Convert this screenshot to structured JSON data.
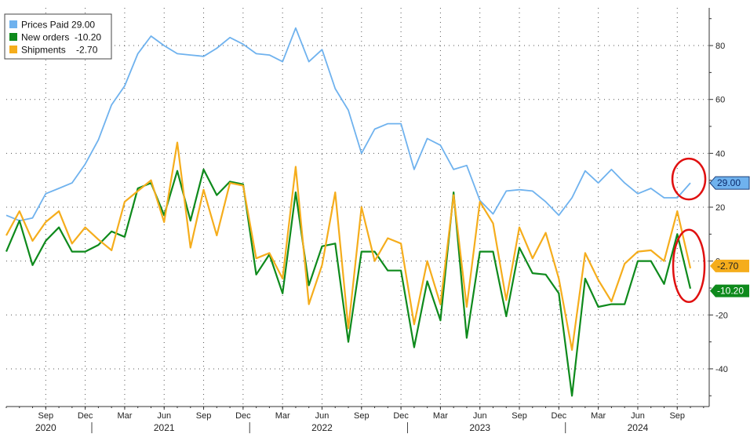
{
  "chart_data": {
    "type": "line",
    "title": "",
    "xlabel": "",
    "ylabel": "",
    "ylim": [
      -54,
      94
    ],
    "y_ticks": [
      -40,
      -20,
      0,
      20,
      40,
      60,
      80
    ],
    "y_tick_labels": [
      "-40",
      "-20",
      "0",
      "20",
      "40",
      "60",
      "80"
    ],
    "grid": true,
    "legend_position": "top-left",
    "x_start": "2020-06",
    "x_tick_labels": [
      {
        "month": "2020-09",
        "label": "Sep"
      },
      {
        "month": "2020-12",
        "label": "Dec"
      },
      {
        "month": "2021-03",
        "label": "Mar"
      },
      {
        "month": "2021-06",
        "label": "Jun"
      },
      {
        "month": "2021-09",
        "label": "Sep"
      },
      {
        "month": "2021-12",
        "label": "Dec"
      },
      {
        "month": "2022-03",
        "label": "Mar"
      },
      {
        "month": "2022-06",
        "label": "Jun"
      },
      {
        "month": "2022-09",
        "label": "Sep"
      },
      {
        "month": "2022-12",
        "label": "Dec"
      },
      {
        "month": "2023-03",
        "label": "Mar"
      },
      {
        "month": "2023-06",
        "label": "Jun"
      },
      {
        "month": "2023-09",
        "label": "Sep"
      },
      {
        "month": "2023-12",
        "label": "Dec"
      },
      {
        "month": "2024-03",
        "label": "Mar"
      },
      {
        "month": "2024-06",
        "label": "Jun"
      },
      {
        "month": "2024-09",
        "label": "Sep"
      }
    ],
    "year_labels": [
      {
        "month": "2020-09",
        "label": "2020"
      },
      {
        "month": "2021-06",
        "label": "2021"
      },
      {
        "month": "2022-06",
        "label": "2022"
      },
      {
        "month": "2023-06",
        "label": "2023"
      },
      {
        "month": "2024-06",
        "label": "2024"
      }
    ],
    "series": [
      {
        "name": "Prices Paid",
        "legend_label": "Prices Paid 29.00",
        "last_value_label": "29.00",
        "color": "#6fb2ee",
        "values": [
          17,
          15,
          16,
          25,
          27,
          29,
          36,
          45,
          58,
          65,
          77,
          83.5,
          80,
          77,
          76.5,
          76,
          79,
          83,
          80.5,
          77,
          76.5,
          74,
          86.5,
          74,
          78.5,
          64,
          56,
          40,
          49,
          51,
          51,
          34,
          45.5,
          43,
          34,
          35.5,
          22.5,
          17.5,
          26,
          26.5,
          26,
          22,
          17,
          23.5,
          33.5,
          29,
          34,
          29,
          25,
          27,
          23.5,
          23.5,
          29
        ]
      },
      {
        "name": "New orders",
        "legend_label": "New orders  -10.20",
        "last_value_label": "-10.20",
        "color": "#0e8a1c",
        "values": [
          3.5,
          15,
          -1.5,
          7.5,
          12.5,
          3.5,
          3.5,
          6,
          11,
          9,
          27,
          29,
          17,
          33.5,
          15,
          34,
          24.5,
          29.5,
          28.5,
          -5,
          2.5,
          -12,
          25.5,
          -9,
          5.5,
          6.5,
          -30,
          3.5,
          3.5,
          -3.5,
          -3.5,
          -32,
          -7.5,
          -22,
          25.5,
          -28.5,
          3.5,
          3.5,
          -20.5,
          5,
          -4.5,
          -5,
          -12,
          -50,
          -6.5,
          -17,
          -16,
          -16,
          0,
          0,
          -8.5,
          10,
          -10.2
        ]
      },
      {
        "name": "Shipments",
        "legend_label": "Shipments    -2.70",
        "last_value_label": "-2.70",
        "color": "#f5ad1c",
        "values": [
          9.5,
          18.5,
          7.5,
          14.5,
          18.5,
          6.5,
          12.5,
          8,
          4,
          22,
          26,
          30,
          14.5,
          44,
          5,
          26.5,
          9.5,
          29,
          28,
          1,
          3,
          -6.5,
          35,
          -16,
          -1.5,
          25.5,
          -25,
          20,
          0,
          8.5,
          6.5,
          -23.5,
          0,
          -16,
          24.5,
          -17,
          22,
          14,
          -14.5,
          12.5,
          1,
          10.5,
          -6.5,
          -33,
          3,
          -7,
          -15,
          -1,
          3.5,
          4,
          0,
          18.5,
          -2.7
        ]
      }
    ]
  }
}
